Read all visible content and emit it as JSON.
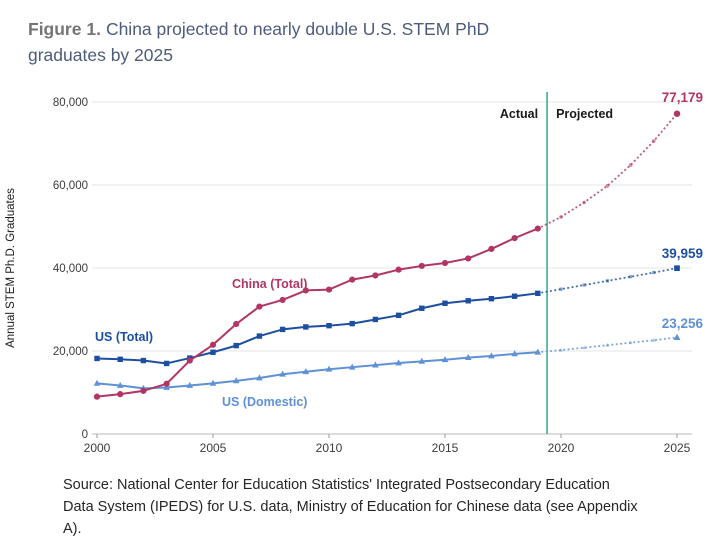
{
  "figure": {
    "label": "Figure 1.",
    "title": "China projected to nearly double U.S. STEM PhD graduates by 2025"
  },
  "source": {
    "text": "Source: National Center for Education Statistics' Integrated Postsecondary Education Data System (IPEDS) for U.S. data, Ministry of Education for Chinese data (see Appendix A)."
  },
  "chart_data": {
    "type": "line",
    "title": "China projected to nearly double U.S. STEM PhD graduates by 2025",
    "ylabel": "Annual STEM Ph.D. Graduates",
    "xlabel": "",
    "ylim": [
      0,
      80000
    ],
    "yticks": [
      0,
      20000,
      40000,
      60000,
      80000
    ],
    "xticks": [
      2000,
      2005,
      2010,
      2015,
      2020,
      2025
    ],
    "x_actual_start": 2000,
    "x_projected_start": 2020,
    "grid": true,
    "divider": {
      "x": 2019.4,
      "color": "#36a58c",
      "left_label": "Actual",
      "right_label": "Projected"
    },
    "series": [
      {
        "name": "China (Total)",
        "color": "#b23665",
        "marker": "circle",
        "actual": [
          9000,
          9600,
          10400,
          12100,
          17700,
          21500,
          26500,
          30700,
          32300,
          34600,
          34800,
          37200,
          38200,
          39600,
          40500,
          41200,
          42300,
          44600,
          47200,
          49500
        ],
        "projected": [
          52300,
          55800,
          59800,
          64800,
          70600,
          77179
        ],
        "end_label": "77,179"
      },
      {
        "name": "US (Total)",
        "color": "#1d4fa1",
        "marker": "square",
        "actual": [
          18200,
          18000,
          17700,
          17000,
          18300,
          19700,
          21300,
          23600,
          25200,
          25800,
          26100,
          26600,
          27600,
          28600,
          30300,
          31500,
          32100,
          32600,
          33200,
          33900
        ],
        "projected": [
          34900,
          35900,
          36900,
          37900,
          38900,
          39959
        ],
        "end_label": "39,959"
      },
      {
        "name": "US (Domestic)",
        "color": "#5e91d5",
        "marker": "triangle",
        "actual": [
          12200,
          11700,
          11000,
          11200,
          11700,
          12200,
          12800,
          13500,
          14400,
          15000,
          15600,
          16100,
          16600,
          17100,
          17500,
          17900,
          18400,
          18800,
          19300,
          19700
        ],
        "projected": [
          20200,
          20800,
          21400,
          22000,
          22600,
          23256
        ],
        "end_label": "23,256"
      }
    ]
  }
}
